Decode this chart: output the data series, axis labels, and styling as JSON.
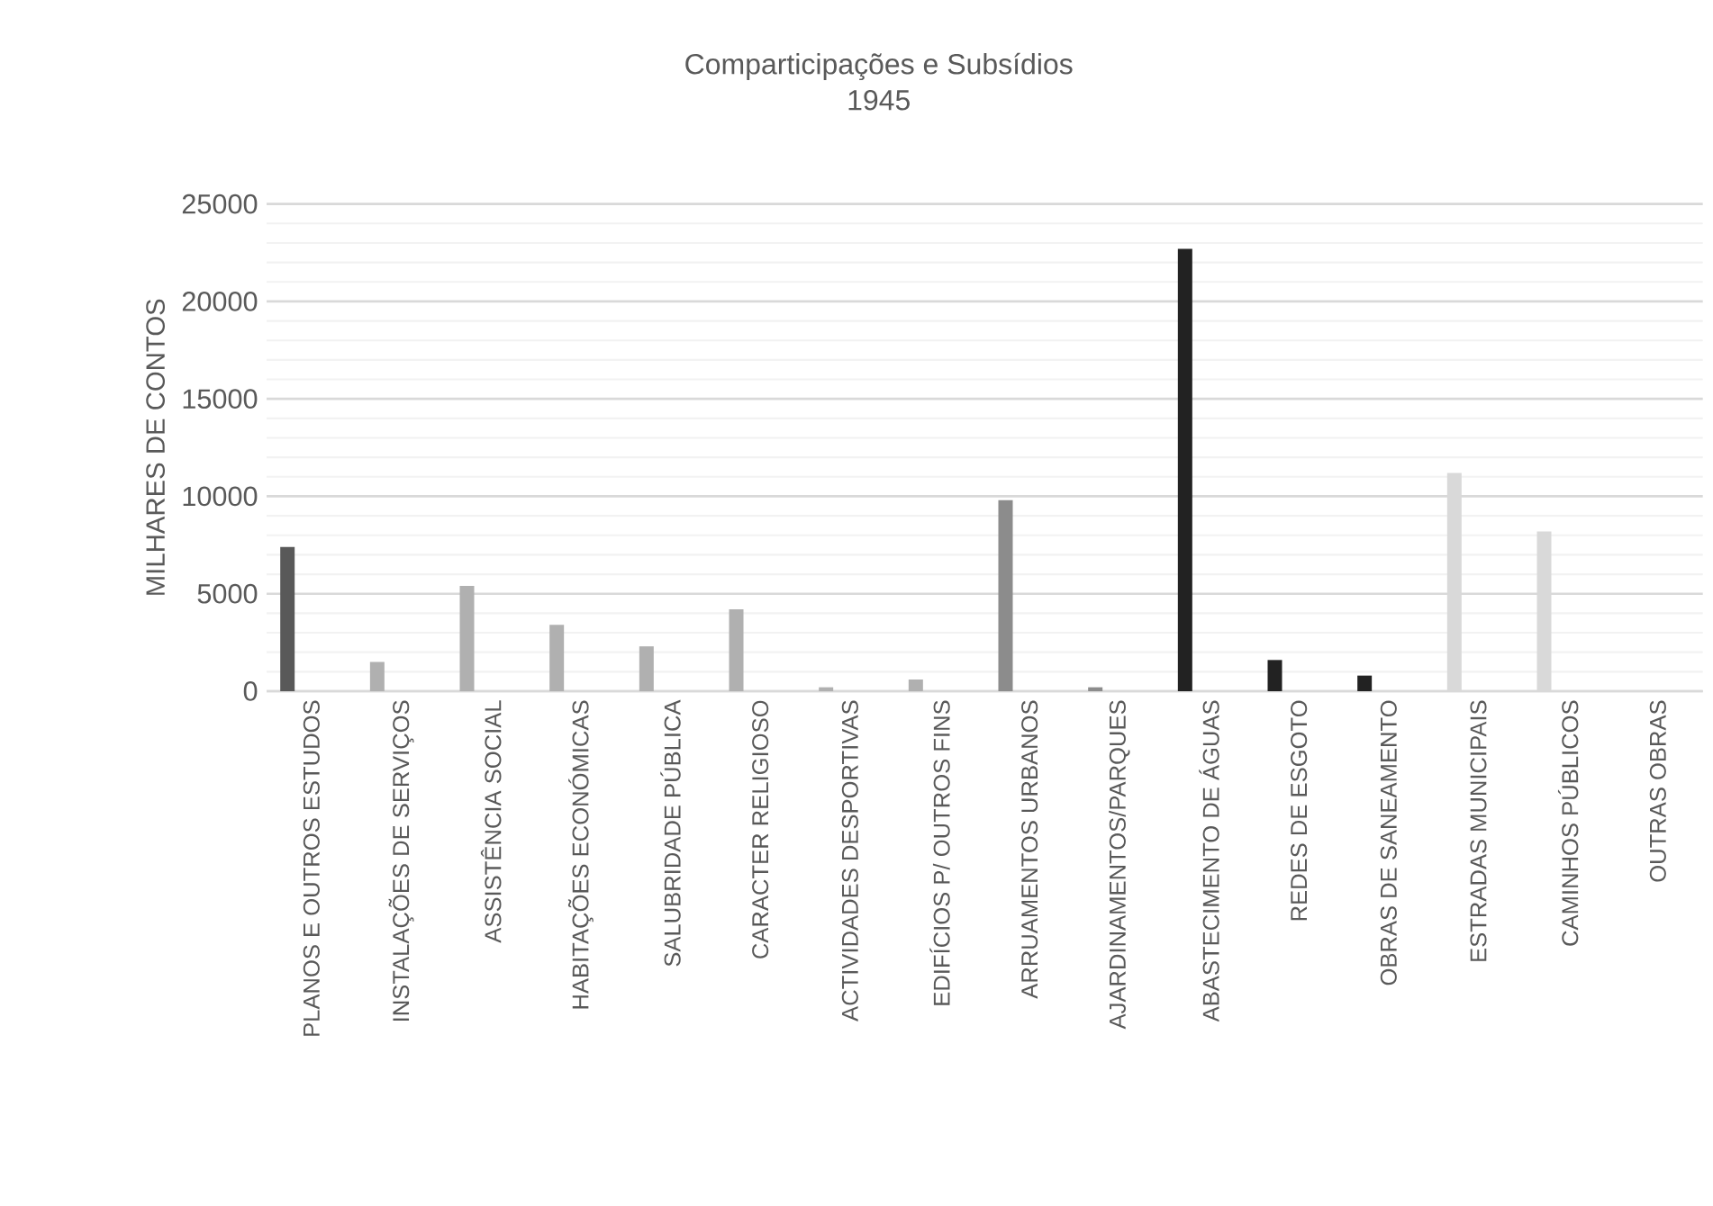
{
  "chart_data": {
    "type": "bar",
    "title": "Comparticipações e Subsídios",
    "subtitle": "1945",
    "ylabel": "MILHARES DE CONTOS",
    "categories": [
      "PLANOS E OUTROS ESTUDOS",
      "INSTALAÇÕES DE SERVIÇOS",
      "ASSISTÊNCIA SOCIAL",
      "HABITAÇÕES ECONÓMICAS",
      "SALUBRIDADE PÚBLICA",
      "CARACTER RELIGIOSO",
      "ACTIVIDADES DESPORTIVAS",
      "EDIFÍCIOS P/ OUTROS FINS",
      "ARRUAMENTOS URBANOS",
      "AJARDINAMENTOS/PARQUES",
      "ABASTECIMENTO DE ÁGUAS",
      "REDES DE ESGOTO",
      "OBRAS DE SANEAMENTO",
      "ESTRADAS MUNICIPAIS",
      "CAMINHOS PÚBLICOS",
      "OUTRAS OBRAS"
    ],
    "values": [
      7400,
      1500,
      5400,
      3400,
      2300,
      4200,
      200,
      600,
      9800,
      200,
      22700,
      1600,
      800,
      11200,
      8200,
      null
    ],
    "colors": [
      "#595959",
      "#b0b0b0",
      "#b0b0b0",
      "#b0b0b0",
      "#b0b0b0",
      "#b0b0b0",
      "#b0b0b0",
      "#b0b0b0",
      "#8c8c8c",
      "#8c8c8c",
      "#222222",
      "#222222",
      "#222222",
      "#d9d9d9",
      "#d9d9d9",
      "#d9d9d9"
    ],
    "ylim": [
      0,
      25000
    ],
    "yticks": [
      0,
      5000,
      10000,
      15000,
      20000,
      25000
    ],
    "grid": "y"
  }
}
